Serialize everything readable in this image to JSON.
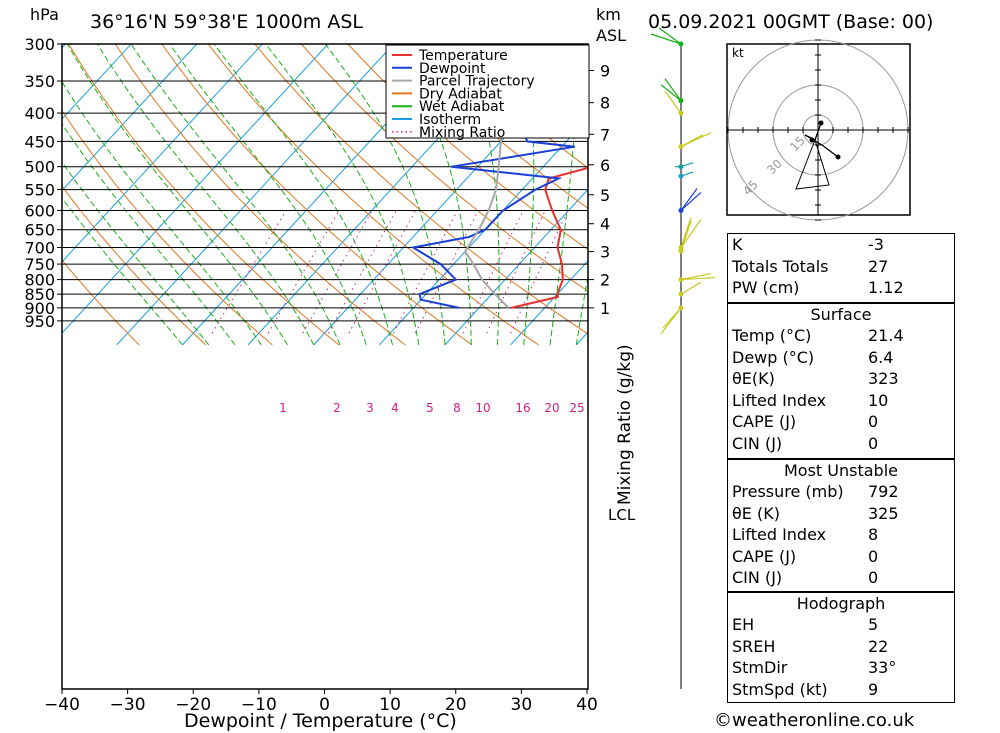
{
  "header": {
    "location": "36°16'N  59°38'E  1000m  ASL",
    "date": "05.09.2021  00GMT  (Base: 00)",
    "pressure_unit": "hPa",
    "height_unit_1": "km",
    "height_unit_2": "ASL"
  },
  "chart_data": {
    "type": "line",
    "title": "36°16'N  59°38'E  1000m  ASL",
    "xlabel": "Dewpoint / Temperature (°C)",
    "ylabel": "hPa",
    "right_axis_label": "Mixing Ratio (g/kg)",
    "x_ticks": [
      -40,
      -30,
      -20,
      -10,
      0,
      10,
      20,
      30,
      40
    ],
    "pressure_ticks": [
      300,
      350,
      400,
      450,
      500,
      550,
      600,
      650,
      700,
      750,
      800,
      850,
      900,
      950
    ],
    "height_ticks": [
      {
        "label": "1",
        "p": 900
      },
      {
        "label": "2",
        "p": 800
      },
      {
        "label": "3",
        "p": 712
      },
      {
        "label": "4",
        "p": 634
      },
      {
        "label": "5",
        "p": 562
      },
      {
        "label": "6",
        "p": 496
      },
      {
        "label": "7",
        "p": 437
      },
      {
        "label": "8",
        "p": 383
      },
      {
        "label": "9",
        "p": 335
      }
    ],
    "lcl_label": "LCL",
    "lcl_pressure": 712,
    "mixing_ratio_labels": [
      "1",
      "2",
      "3",
      "4",
      "5",
      "8",
      "10",
      "16",
      "20",
      "25"
    ],
    "legend": [
      {
        "name": "Temperature",
        "color": "#e83030",
        "style": "solid"
      },
      {
        "name": "Dewpoint",
        "color": "#1a3fd6",
        "style": "solid"
      },
      {
        "name": "Parcel Trajectory",
        "color": "#a8a8a8",
        "style": "solid"
      },
      {
        "name": "Dry Adiabat",
        "color": "#e07820",
        "style": "solid"
      },
      {
        "name": "Wet Adiabat",
        "color": "#18b018",
        "style": "solid"
      },
      {
        "name": "Isotherm",
        "color": "#1aa0e0",
        "style": "solid"
      },
      {
        "name": "Mixing Ratio",
        "color": "#d0208a",
        "style": "dotted"
      }
    ],
    "series": [
      {
        "name": "Temperature",
        "color": "#e83030",
        "points": [
          [
            900,
            24.9
          ],
          [
            860,
            30.5
          ],
          [
            850,
            30
          ],
          [
            800,
            28.8
          ],
          [
            750,
            26.5
          ],
          [
            700,
            23.5
          ],
          [
            650,
            21.5
          ],
          [
            600,
            17.5
          ],
          [
            550,
            13.5
          ],
          [
            525,
            12.5
          ],
          [
            500,
            17.5
          ],
          [
            470,
            16.5
          ],
          [
            450,
            17
          ],
          [
            400,
            12
          ],
          [
            380,
            13.5
          ],
          [
            365,
            14
          ]
        ]
      },
      {
        "name": "Dewpoint",
        "color": "#1a3fd6",
        "points": [
          [
            900,
            17
          ],
          [
            870,
            10
          ],
          [
            850,
            9
          ],
          [
            800,
            12.5
          ],
          [
            750,
            8
          ],
          [
            700,
            1.5
          ],
          [
            670,
            8.5
          ],
          [
            650,
            10
          ],
          [
            600,
            10
          ],
          [
            550,
            12
          ],
          [
            525,
            14
          ],
          [
            500,
            -4
          ],
          [
            460,
            12
          ],
          [
            450,
            4
          ],
          [
            400,
            -1.5
          ],
          [
            395,
            -1.5
          ],
          [
            375,
            4
          ],
          [
            350,
            6
          ],
          [
            320,
            9
          ],
          [
            300,
            7
          ]
        ]
      },
      {
        "name": "Parcel Trajectory",
        "color": "#a8a8a8",
        "points": [
          [
            900,
            24.5
          ],
          [
            850,
            20.5
          ],
          [
            800,
            16.5
          ],
          [
            750,
            13
          ],
          [
            712,
            10
          ],
          [
            700,
            9.8
          ],
          [
            650,
            9
          ],
          [
            600,
            7.8
          ],
          [
            550,
            6
          ],
          [
            500,
            3.2
          ],
          [
            450,
            0
          ],
          [
            400,
            -4
          ],
          [
            350,
            -9
          ],
          [
            300,
            -15
          ]
        ]
      }
    ],
    "wind_barbs": [
      {
        "p": 300,
        "color": "#18b018"
      },
      {
        "p": 380,
        "color": "#18b018"
      },
      {
        "p": 400,
        "color": "#c8c820"
      },
      {
        "p": 460,
        "color": "#c8c820"
      },
      {
        "p": 500,
        "color": "#18a0a0"
      },
      {
        "p": 520,
        "color": "#18a0c8"
      },
      {
        "p": 600,
        "color": "#1a3fd6"
      },
      {
        "p": 700,
        "color": "#c8c820"
      },
      {
        "p": 710,
        "color": "#c8c820"
      },
      {
        "p": 800,
        "color": "#c8c820"
      },
      {
        "p": 850,
        "color": "#c8c820"
      },
      {
        "p": 900,
        "color": "#c8c820"
      }
    ],
    "hodograph": {
      "unit": "kt",
      "ring_labels": [
        "15",
        "30",
        "45"
      ]
    }
  },
  "indices": [
    {
      "label": "K",
      "value": "-3"
    },
    {
      "label": "Totals Totals",
      "value": "27"
    },
    {
      "label": "PW (cm)",
      "value": "1.12"
    }
  ],
  "surface": {
    "title": "Surface",
    "rows": [
      {
        "label": "Temp (°C)",
        "value": "21.4"
      },
      {
        "label": "Dewp (°C)",
        "value": "6.4"
      },
      {
        "label": "θE(K)",
        "value": "323"
      },
      {
        "label": "Lifted Index",
        "value": "10"
      },
      {
        "label": "CAPE (J)",
        "value": "0"
      },
      {
        "label": "CIN (J)",
        "value": "0"
      }
    ]
  },
  "most_unstable": {
    "title": "Most Unstable",
    "rows": [
      {
        "label": "Pressure (mb)",
        "value": "792"
      },
      {
        "label": "θE (K)",
        "value": "325"
      },
      {
        "label": "Lifted Index",
        "value": "8"
      },
      {
        "label": "CAPE (J)",
        "value": "0"
      },
      {
        "label": "CIN (J)",
        "value": "0"
      }
    ]
  },
  "hodograph_panel": {
    "title": "Hodograph",
    "rows": [
      {
        "label": "EH",
        "value": "5"
      },
      {
        "label": "SREH",
        "value": "22"
      },
      {
        "label": "StmDir",
        "value": "33°"
      },
      {
        "label": "StmSpd (kt)",
        "value": "9"
      }
    ]
  },
  "credit": "©weatheronline.co.uk"
}
